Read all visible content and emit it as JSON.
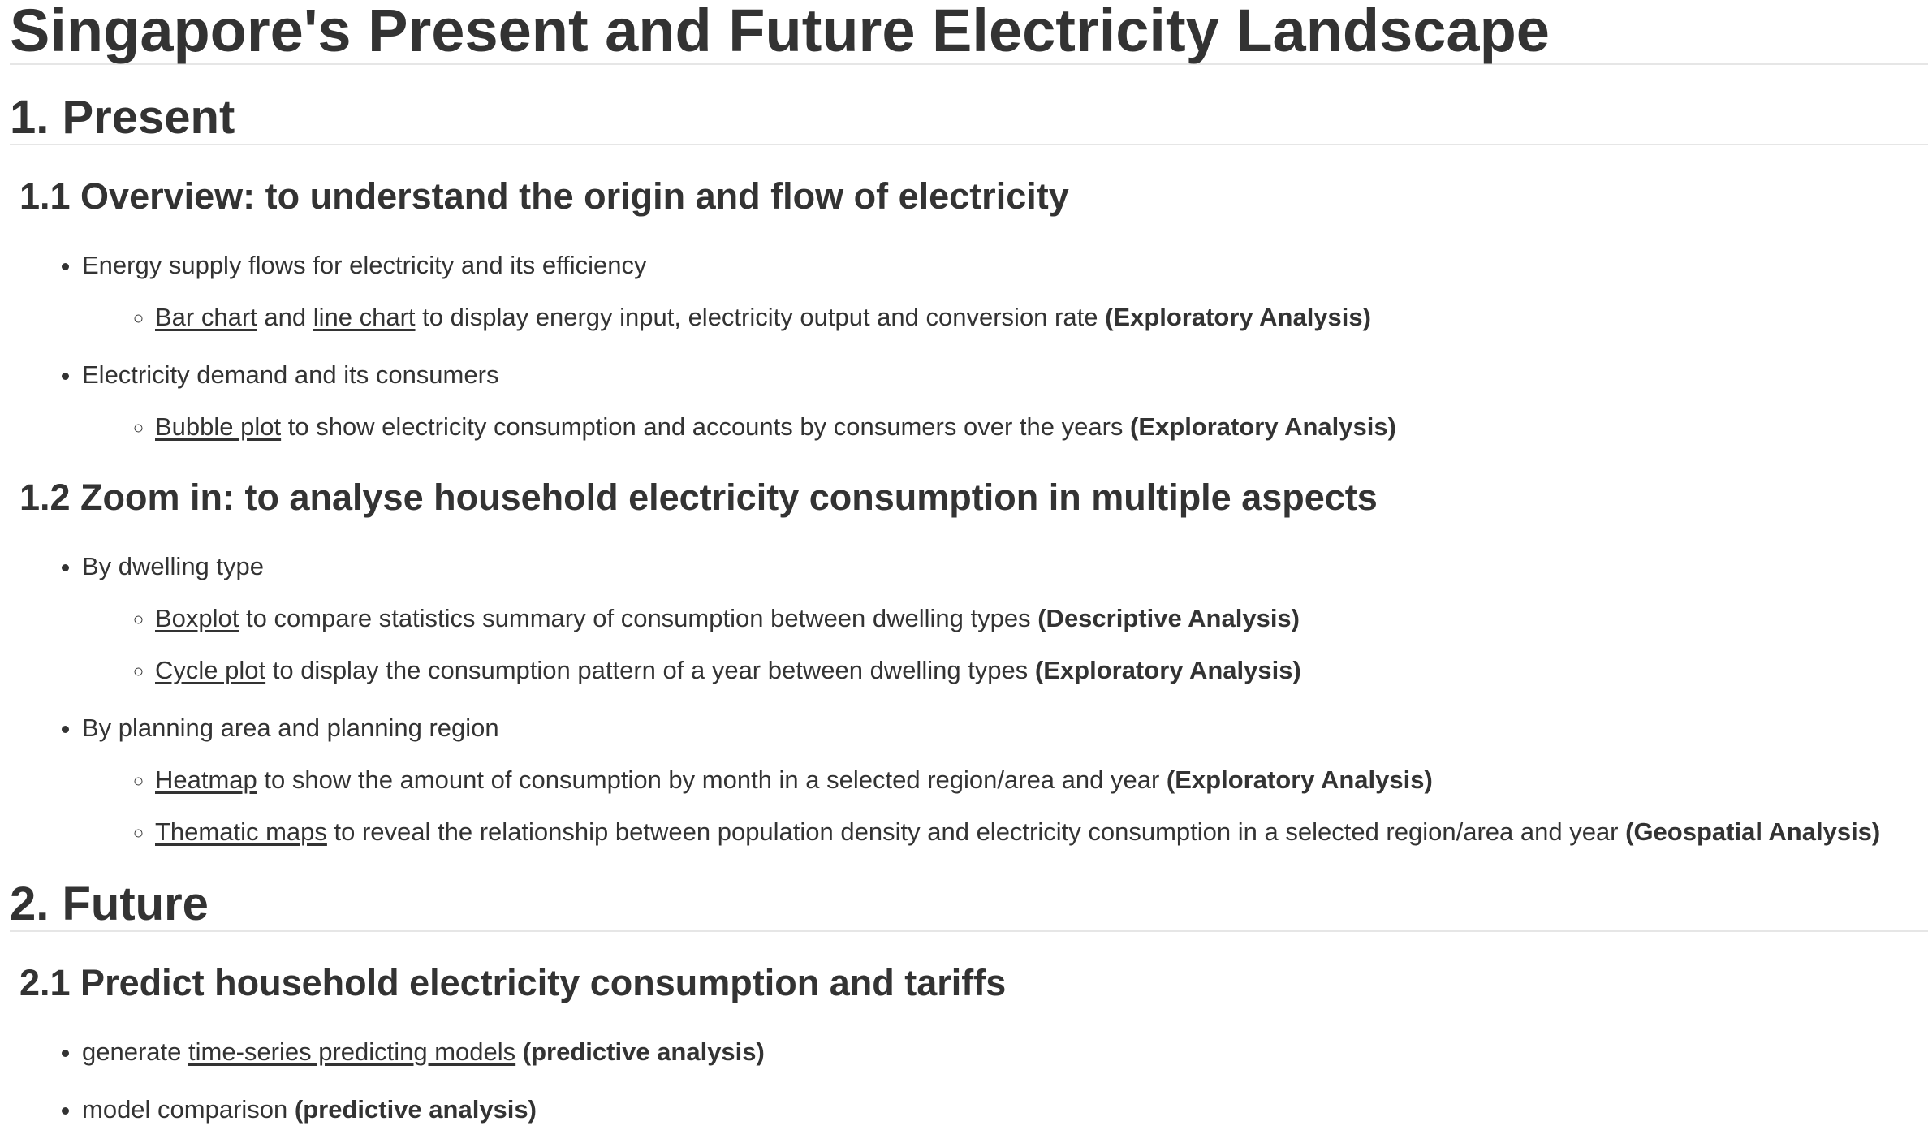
{
  "title": "Singapore's Present and Future Electricity Landscape",
  "sections": [
    {
      "heading": "1. Present",
      "subsections": [
        {
          "heading": "1.1 Overview: to understand the origin and flow of electricity",
          "items": [
            {
              "text": "Energy supply flows for electricity and its efficiency",
              "subitems": [
                {
                  "parts": [
                    {
                      "link": "Bar chart"
                    },
                    {
                      "text": " and "
                    },
                    {
                      "link": "line chart"
                    },
                    {
                      "text": " to display energy input, electricity output and conversion rate "
                    },
                    {
                      "bold": "(Exploratory Analysis)"
                    }
                  ]
                }
              ]
            },
            {
              "text": "Electricity demand and its consumers",
              "subitems": [
                {
                  "parts": [
                    {
                      "link": "Bubble plot"
                    },
                    {
                      "text": " to show electricity consumption and accounts by consumers over the years "
                    },
                    {
                      "bold": "(Exploratory Analysis)"
                    }
                  ]
                }
              ]
            }
          ]
        },
        {
          "heading": "1.2 Zoom in: to analyse household electricity consumption in multiple aspects",
          "items": [
            {
              "text": "By dwelling type",
              "subitems": [
                {
                  "parts": [
                    {
                      "link": "Boxplot"
                    },
                    {
                      "text": " to compare statistics summary of consumption between dwelling types "
                    },
                    {
                      "bold": "(Descriptive Analysis)"
                    }
                  ]
                },
                {
                  "parts": [
                    {
                      "link": "Cycle plot"
                    },
                    {
                      "text": " to display the consumption pattern of a year between dwelling types "
                    },
                    {
                      "bold": "(Exploratory Analysis)"
                    }
                  ]
                }
              ]
            },
            {
              "text": "By planning area and planning region",
              "subitems": [
                {
                  "parts": [
                    {
                      "link": "Heatmap"
                    },
                    {
                      "text": " to show the amount of consumption by month in a selected region/area and year "
                    },
                    {
                      "bold": "(Exploratory Analysis)"
                    }
                  ]
                },
                {
                  "parts": [
                    {
                      "link": "Thematic maps"
                    },
                    {
                      "text": " to reveal the relationship between population density and electricity consumption in a selected region/area and year "
                    },
                    {
                      "bold": "(Geospatial Analysis)"
                    }
                  ]
                }
              ]
            }
          ]
        }
      ]
    },
    {
      "heading": "2. Future",
      "subsections": [
        {
          "heading": "2.1 Predict household electricity consumption and tariffs",
          "items": [
            {
              "parts": [
                {
                  "text": "generate "
                },
                {
                  "link": "time-series predicting models"
                },
                {
                  "text": " "
                },
                {
                  "bold": "(predictive analysis)"
                }
              ]
            },
            {
              "parts": [
                {
                  "text": "model comparison "
                },
                {
                  "bold": "(predictive analysis)"
                }
              ]
            }
          ]
        }
      ]
    }
  ]
}
